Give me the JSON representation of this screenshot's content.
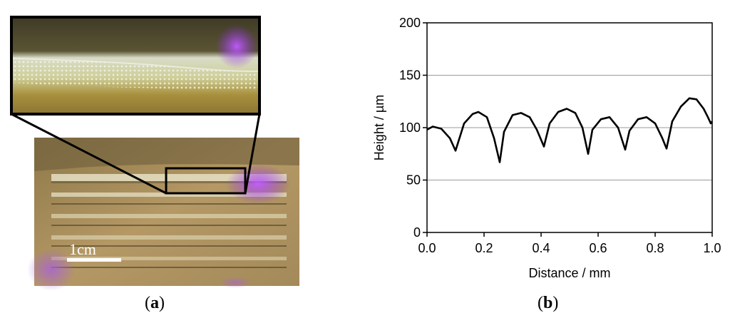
{
  "figure": {
    "panel_a_label": "a",
    "panel_b_label": "b",
    "scale_bar_label": "1cm"
  },
  "colors": {
    "curve": "#000000",
    "gridline": "#9a9a9a",
    "photo_sand": "#b49865",
    "photo_dark": "#3d3621",
    "highlight_violet": "#9b3cf0",
    "stripe_light": "#e6e0c6"
  },
  "chart_data": {
    "type": "line",
    "xlabel": "Distance / mm",
    "ylabel": "Height / µm",
    "xlim": [
      0.0,
      1.0
    ],
    "ylim": [
      0,
      200
    ],
    "x_ticks": [
      "0.0",
      "0.2",
      "0.4",
      "0.6",
      "0.8",
      "1.0"
    ],
    "y_ticks": [
      "0",
      "50",
      "100",
      "150",
      "200"
    ],
    "grid": "horizontal",
    "series": [
      {
        "x": [
          0.0,
          0.02,
          0.05,
          0.08,
          0.1,
          0.13,
          0.16,
          0.18,
          0.21,
          0.235,
          0.255,
          0.27,
          0.3,
          0.33,
          0.36,
          0.385,
          0.41,
          0.43,
          0.46,
          0.49,
          0.52,
          0.545,
          0.565,
          0.58,
          0.61,
          0.64,
          0.67,
          0.695,
          0.71,
          0.74,
          0.77,
          0.8,
          0.825,
          0.84,
          0.86,
          0.89,
          0.92,
          0.945,
          0.97,
          0.985,
          0.995,
          1.0
        ],
        "y": [
          98,
          101,
          99,
          90,
          78,
          104,
          113,
          115,
          110,
          90,
          67,
          96,
          112,
          114,
          110,
          98,
          82,
          104,
          115,
          118,
          114,
          100,
          75,
          98,
          108,
          110,
          100,
          79,
          97,
          108,
          110,
          104,
          90,
          80,
          106,
          120,
          128,
          127,
          118,
          110,
          104,
          106
        ]
      }
    ]
  }
}
